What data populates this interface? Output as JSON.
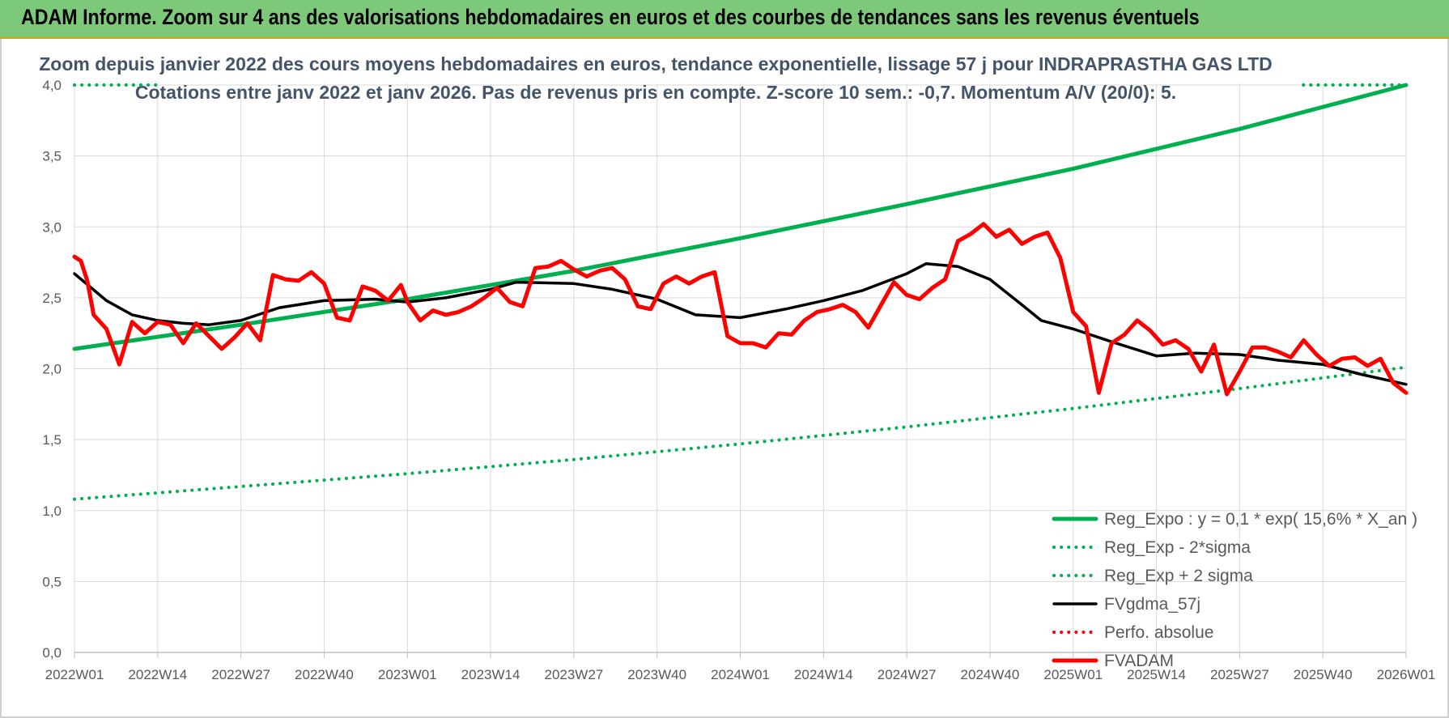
{
  "header": {
    "title": "ADAM Informe. Zoom sur 4 ans des valorisations hebdomadaires en euros et des courbes de tendances sans les revenus éventuels"
  },
  "colors": {
    "banner": "#7dc97a",
    "reg_expo": "#00b050",
    "fvgdma": "#000000",
    "fvadam": "#ff0000",
    "grid": "#d9d9d9",
    "text": "#595959",
    "subtitle": "#44546a"
  },
  "chart_data": {
    "type": "line",
    "title": "Zoom depuis janvier 2022 des cours moyens hebdomadaires en euros, tendance exponentielle, lissage 57 j pour INDRAPRASTHA GAS LTD",
    "subtitle": "Cotations entre janv 2022 et janv 2026. Pas de revenus pris en compte. Z-score 10 sem.: -0,7. Momentum A/V (20/0): 5.",
    "xlabel": "",
    "ylabel": "",
    "ylim": [
      0,
      4
    ],
    "yticks": [
      "0,0",
      "0,5",
      "1,0",
      "1,5",
      "2,0",
      "2,5",
      "3,0",
      "3,5",
      "4,0"
    ],
    "x_ticks": [
      "2022W01",
      "2022W14",
      "2022W27",
      "2022W40",
      "2023W01",
      "2023W14",
      "2023W27",
      "2023W40",
      "2024W01",
      "2024W14",
      "2024W27",
      "2024W40",
      "2025W01",
      "2025W14",
      "2025W27",
      "2025W40",
      "2026W01"
    ],
    "grid": true,
    "legend_position": "bottom-right",
    "series": [
      {
        "name": "Reg_Expo : y = 0,1 * exp( 15,6% *  X_an )",
        "style": "solid-thick",
        "color": "#00b050",
        "x": [
          "2022W01",
          "2022W27",
          "2023W01",
          "2023W27",
          "2024W01",
          "2024W27",
          "2025W01",
          "2025W27",
          "2026W01"
        ],
        "values": [
          2.14,
          2.31,
          2.49,
          2.69,
          2.92,
          3.16,
          3.41,
          3.69,
          4.0
        ]
      },
      {
        "name": "Reg_Exp - 2*sigma",
        "style": "dotted",
        "color": "#00b050",
        "x": [
          "2022W01",
          "2022W27",
          "2023W01",
          "2023W27",
          "2024W01",
          "2024W27",
          "2025W01",
          "2025W27",
          "2026W01"
        ],
        "values": [
          1.08,
          1.17,
          1.26,
          1.36,
          1.47,
          1.59,
          1.72,
          1.86,
          2.01
        ]
      },
      {
        "name": "Reg_Exp + 2 sigma",
        "style": "dotted",
        "color": "#00b050",
        "x": [
          "2022W01",
          "2022W14"
        ],
        "values": [
          4.0,
          4.0
        ]
      },
      {
        "name": "FVgdma_57j",
        "style": "solid",
        "color": "#000000",
        "x": [
          "2022W01",
          "2022W06",
          "2022W10",
          "2022W14",
          "2022W18",
          "2022W22",
          "2022W27",
          "2022W33",
          "2022W40",
          "2022W48",
          "2023W01",
          "2023W07",
          "2023W14",
          "2023W18",
          "2023W27",
          "2023W33",
          "2023W40",
          "2023W46",
          "2024W01",
          "2024W08",
          "2024W14",
          "2024W20",
          "2024W27",
          "2024W30",
          "2024W35",
          "2024W40",
          "2024W45",
          "2024W48",
          "2025W01",
          "2025W07",
          "2025W14",
          "2025W20",
          "2025W27",
          "2025W33",
          "2025W40",
          "2025W46",
          "2026W01"
        ],
        "values": [
          2.67,
          2.48,
          2.38,
          2.34,
          2.32,
          2.31,
          2.34,
          2.43,
          2.48,
          2.49,
          2.47,
          2.5,
          2.56,
          2.61,
          2.6,
          2.56,
          2.49,
          2.38,
          2.36,
          2.42,
          2.48,
          2.55,
          2.67,
          2.74,
          2.72,
          2.63,
          2.45,
          2.34,
          2.28,
          2.19,
          2.09,
          2.11,
          2.1,
          2.06,
          2.03,
          1.96,
          1.89
        ]
      },
      {
        "name": "Perfo. absolue",
        "style": "dotted",
        "color": "#ff0000",
        "x": [],
        "values": []
      },
      {
        "name": "FVADAM",
        "style": "solid-thick",
        "color": "#ff0000",
        "x": [
          "2022W01",
          "2022W02",
          "2022W03",
          "2022W04",
          "2022W06",
          "2022W08",
          "2022W10",
          "2022W12",
          "2022W14",
          "2022W16",
          "2022W18",
          "2022W20",
          "2022W22",
          "2022W24",
          "2022W26",
          "2022W28",
          "2022W30",
          "2022W32",
          "2022W34",
          "2022W36",
          "2022W38",
          "2022W40",
          "2022W42",
          "2022W44",
          "2022W46",
          "2022W48",
          "2022W50",
          "2022W52",
          "2023W01",
          "2023W03",
          "2023W05",
          "2023W07",
          "2023W09",
          "2023W11",
          "2023W13",
          "2023W15",
          "2023W17",
          "2023W19",
          "2023W21",
          "2023W23",
          "2023W25",
          "2023W27",
          "2023W29",
          "2023W31",
          "2023W33",
          "2023W35",
          "2023W37",
          "2023W39",
          "2023W41",
          "2023W43",
          "2023W45",
          "2023W47",
          "2023W49",
          "2023W51",
          "2024W01",
          "2024W03",
          "2024W05",
          "2024W07",
          "2024W09",
          "2024W11",
          "2024W13",
          "2024W15",
          "2024W17",
          "2024W19",
          "2024W21",
          "2024W23",
          "2024W25",
          "2024W27",
          "2024W29",
          "2024W31",
          "2024W33",
          "2024W35",
          "2024W37",
          "2024W39",
          "2024W41",
          "2024W43",
          "2024W45",
          "2024W47",
          "2024W49",
          "2024W51",
          "2025W01",
          "2025W03",
          "2025W05",
          "2025W07",
          "2025W09",
          "2025W11",
          "2025W13",
          "2025W15",
          "2025W17",
          "2025W19",
          "2025W21",
          "2025W23",
          "2025W25",
          "2025W27",
          "2025W29",
          "2025W31",
          "2025W33",
          "2025W35",
          "2025W37",
          "2025W39",
          "2025W41",
          "2025W43",
          "2025W45",
          "2025W47",
          "2025W49",
          "2025W51",
          "2026W01"
        ],
        "values": [
          2.79,
          2.76,
          2.62,
          2.38,
          2.28,
          2.03,
          2.33,
          2.25,
          2.33,
          2.31,
          2.18,
          2.32,
          2.23,
          2.14,
          2.22,
          2.32,
          2.2,
          2.66,
          2.63,
          2.62,
          2.68,
          2.6,
          2.36,
          2.34,
          2.58,
          2.55,
          2.48,
          2.59,
          2.47,
          2.34,
          2.41,
          2.38,
          2.4,
          2.44,
          2.5,
          2.57,
          2.47,
          2.44,
          2.71,
          2.72,
          2.76,
          2.7,
          2.65,
          2.69,
          2.71,
          2.63,
          2.44,
          2.42,
          2.6,
          2.65,
          2.6,
          2.65,
          2.68,
          2.23,
          2.18,
          2.18,
          2.15,
          2.25,
          2.24,
          2.34,
          2.4,
          2.42,
          2.45,
          2.4,
          2.29,
          2.45,
          2.61,
          2.52,
          2.49,
          2.57,
          2.63,
          2.9,
          2.95,
          3.02,
          2.93,
          2.98,
          2.88,
          2.93,
          2.96,
          2.78,
          2.4,
          2.3,
          1.83,
          2.18,
          2.24,
          2.34,
          2.27,
          2.17,
          2.2,
          2.14,
          1.98,
          2.17,
          1.82,
          1.98,
          2.15,
          2.15,
          2.12,
          2.08,
          2.2,
          2.1,
          2.02,
          2.07,
          2.08,
          2.02,
          2.07,
          1.9,
          1.83
        ]
      }
    ]
  }
}
